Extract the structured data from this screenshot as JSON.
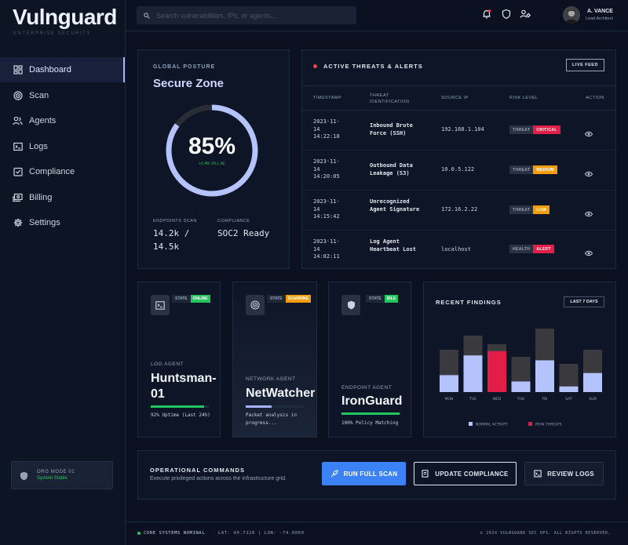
{
  "brand": {
    "name": "Vulnguard",
    "tagline": "ENTERPRISE SECURITY"
  },
  "search": {
    "placeholder": "Search vulnerabilities, IPs, or agents..."
  },
  "user": {
    "name": "A. VANCE",
    "role": "Lead Architect"
  },
  "nav": [
    {
      "label": "Dashboard",
      "icon": "dashboard-icon"
    },
    {
      "label": "Scan",
      "icon": "radar-icon"
    },
    {
      "label": "Agents",
      "icon": "agents-icon"
    },
    {
      "label": "Logs",
      "icon": "terminal-icon"
    },
    {
      "label": "Compliance",
      "icon": "checklist-icon"
    },
    {
      "label": "Billing",
      "icon": "payments-icon"
    },
    {
      "label": "Settings",
      "icon": "gear-icon"
    }
  ],
  "org": {
    "mode": "ORG MODE 01",
    "status": "System Stable"
  },
  "posture": {
    "label": "GLOBAL POSTURE",
    "title": "Secure Zone",
    "score": "85%",
    "score_fraction": 0.85,
    "delta": "+2.4% VS L.W.",
    "endpoints_label": "ENDPOINTS SCAN",
    "endpoints_value": "14.2k / 14.5k",
    "compliance_label": "COMPLIANCE",
    "compliance_value": "SOC2 Ready"
  },
  "threats": {
    "title": "ACTIVE THREATS & ALERTS",
    "live_label": "LIVE FEED",
    "headers": [
      "TIMESTAMP",
      "THREAT IDENTIFICATION",
      "SOURCE IP",
      "RISK LEVEL",
      "ACTION"
    ],
    "rows": [
      {
        "ts": "2023-11-14 14:22:18",
        "id": "Inbound Brute Force (SSH)",
        "ip": "192.168.1.104",
        "kind": "THREAT",
        "level": "CRITICAL",
        "level_color": "#e11d48"
      },
      {
        "ts": "2023-11-14 14:20:05",
        "id": "Outbound Data Leakage (S3)",
        "ip": "10.0.5.122",
        "kind": "THREAT",
        "level": "MEDIUM",
        "level_color": "#f59e0b"
      },
      {
        "ts": "2023-11-14 14:15:42",
        "id": "Unrecognized Agent Signature",
        "ip": "172.16.2.22",
        "kind": "THREAT",
        "level": "LOW",
        "level_color": "#f59e0b"
      },
      {
        "ts": "2023-11-14 14:02:11",
        "id": "Log Agent Heartbeat Lost",
        "ip": "localhost",
        "kind": "HEALTH",
        "level": "ALERT",
        "level_color": "#e11d48"
      }
    ]
  },
  "agents": [
    {
      "label": "LOG AGENT",
      "name": "Huntsman-01",
      "status_key": "STATE",
      "status": "ONLINE",
      "status_color": "#22c55e",
      "progress": 0.92,
      "bar_color": "#22c55e",
      "note": "92% Uptime (Last 24h)",
      "icon": "terminal-icon"
    },
    {
      "label": "NETWORK AGENT",
      "name": "NetWatcher",
      "status_key": "STATE",
      "status": "SCANNING",
      "status_color": "#f59e0b",
      "progress": 0.45,
      "bar_color": "#a5b4fc",
      "note": "Packet analysis in progress...",
      "icon": "radar-icon"
    },
    {
      "label": "ENDPOINT AGENT",
      "name": "IronGuard",
      "status_key": "STATE",
      "status": "IDLE",
      "status_color": "#22c55e",
      "progress": 1.0,
      "bar_color": "#22c55e",
      "note": "100% Policy Matching",
      "icon": "shield-icon"
    }
  ],
  "findings": {
    "title": "RECENT FINDINGS",
    "range_label": "LAST 7 DAYS",
    "legend_normal": "NORMAL ACTIVITY",
    "legend_peak": "PEAK THREATS",
    "colors": {
      "normal": "#b4c3fb",
      "peak": "#e11d48",
      "total": "#3a3a3e"
    },
    "chart_data": {
      "type": "bar",
      "categories": [
        "MON",
        "TUE",
        "WED",
        "THU",
        "FRI",
        "SAT",
        "SUN"
      ],
      "series": [
        {
          "name": "NORMAL ACTIVITY",
          "values": [
            24,
            52,
            0,
            15,
            45,
            8,
            27
          ]
        },
        {
          "name": "PEAK THREATS",
          "values": [
            0,
            0,
            58,
            0,
            0,
            0,
            0
          ]
        }
      ],
      "totals": [
        60,
        80,
        68,
        50,
        90,
        40,
        60
      ],
      "ylim": [
        0,
        100
      ]
    }
  },
  "commands": {
    "title": "OPERATIONAL COMMANDS",
    "subtitle": "Execute privileged actions across the infrastructure grid.",
    "run_label": "RUN FULL SCAN",
    "update_label": "UPDATE COMPLIANCE",
    "review_label": "REVIEW LOGS"
  },
  "footer": {
    "status": "CORE SYSTEMS NOMINAL",
    "coords": "LAT: 40.7128 | LON: -74.0060",
    "copyright": "© 2024 VULNGUARD SEC OPS. ALL RIGHTS RESERVED."
  }
}
